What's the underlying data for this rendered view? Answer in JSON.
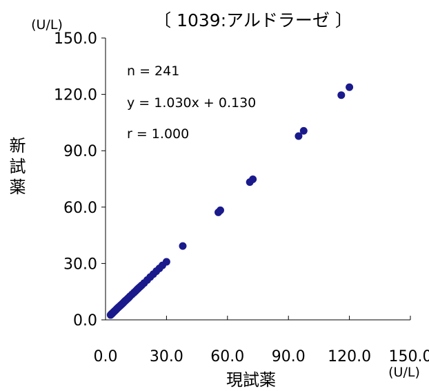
{
  "chart_data": {
    "type": "scatter",
    "title": "〔 1039:アルドラーゼ 〕",
    "xlabel": "現試薬",
    "ylabel": "新試薬",
    "x_unit": "(U/L)",
    "y_unit": "(U/L)",
    "xlim": [
      0,
      150
    ],
    "ylim": [
      0,
      150
    ],
    "x_ticks": [
      0,
      30,
      60,
      90,
      120,
      150
    ],
    "y_ticks": [
      0,
      30,
      60,
      90,
      120,
      150
    ],
    "x_tick_labels": [
      "0.0",
      "30.0",
      "60.0",
      "90.0",
      "120.0",
      "150.0"
    ],
    "y_tick_labels": [
      "0.0",
      "30.0",
      "60.0",
      "90.0",
      "120.0",
      "150.0"
    ],
    "grid": false,
    "point_color": "#1a1a8c",
    "annotations": {
      "n": "n = 241",
      "equation": "y = 1.030x + 0.130",
      "r": "r = 1.000"
    },
    "points": [
      [
        2.5,
        2.6
      ],
      [
        2.8,
        2.9
      ],
      [
        3.0,
        3.2
      ],
      [
        3.2,
        3.3
      ],
      [
        3.5,
        3.6
      ],
      [
        3.8,
        4.0
      ],
      [
        4.0,
        4.2
      ],
      [
        4.3,
        4.5
      ],
      [
        4.5,
        4.7
      ],
      [
        4.8,
        5.0
      ],
      [
        5.0,
        5.2
      ],
      [
        5.3,
        5.5
      ],
      [
        5.5,
        5.8
      ],
      [
        5.8,
        6.1
      ],
      [
        6.0,
        6.3
      ],
      [
        6.3,
        6.6
      ],
      [
        6.6,
        6.9
      ],
      [
        7.0,
        7.3
      ],
      [
        7.3,
        7.6
      ],
      [
        7.6,
        7.9
      ],
      [
        8.0,
        8.3
      ],
      [
        8.4,
        8.7
      ],
      [
        8.8,
        9.1
      ],
      [
        9.2,
        9.6
      ],
      [
        9.6,
        10.0
      ],
      [
        10.0,
        10.4
      ],
      [
        10.5,
        10.9
      ],
      [
        11.0,
        11.4
      ],
      [
        11.5,
        11.9
      ],
      [
        12.0,
        12.5
      ],
      [
        13.0,
        13.5
      ],
      [
        14.0,
        14.5
      ],
      [
        14.8,
        15.3
      ],
      [
        15.5,
        16.1
      ],
      [
        16.2,
        16.8
      ],
      [
        17.0,
        17.6
      ],
      [
        17.8,
        18.4
      ],
      [
        19.0,
        19.6
      ],
      [
        20.5,
        21.2
      ],
      [
        22.0,
        22.8
      ],
      [
        23.5,
        24.3
      ],
      [
        25.0,
        25.9
      ],
      [
        26.5,
        27.4
      ],
      [
        28.0,
        29.0
      ],
      [
        30.0,
        30.9
      ],
      [
        38.0,
        39.3
      ],
      [
        55.5,
        57.2
      ],
      [
        56.5,
        58.3
      ],
      [
        71.0,
        73.3
      ],
      [
        72.5,
        74.8
      ],
      [
        95.0,
        97.8
      ],
      [
        97.5,
        100.6
      ],
      [
        116.0,
        119.6
      ],
      [
        120.0,
        123.8
      ]
    ]
  }
}
